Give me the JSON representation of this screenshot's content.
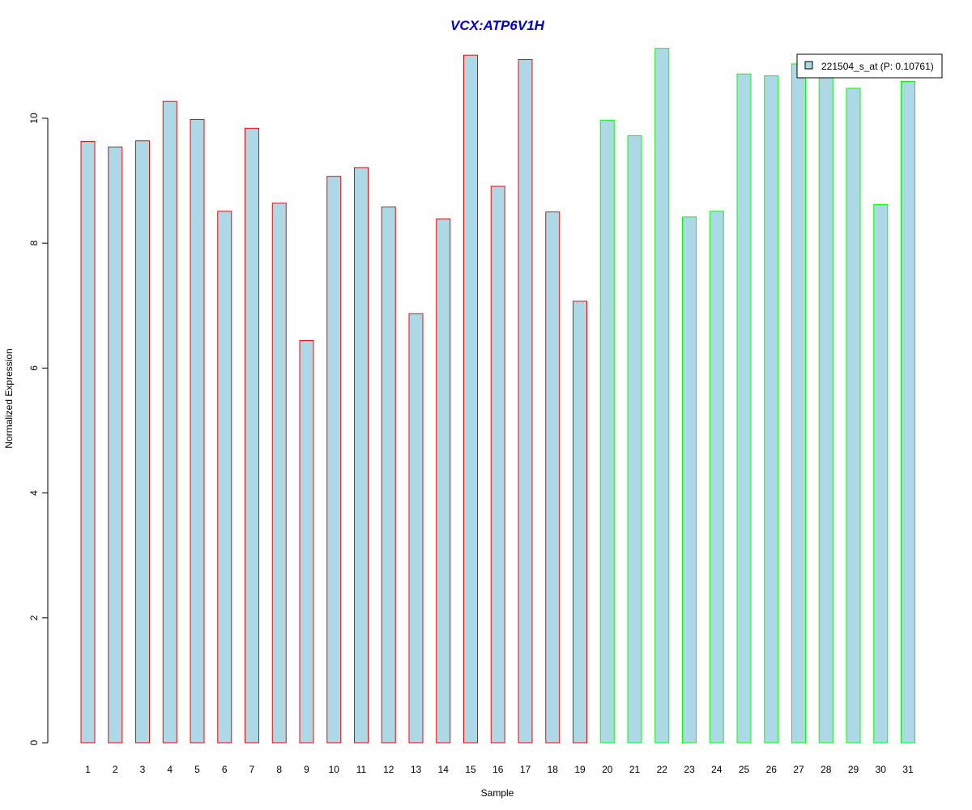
{
  "chart_data": {
    "type": "bar",
    "title": "VCX:ATP6V1H",
    "xlabel": "Sample",
    "ylabel": "Normalized Expression",
    "categories": [
      "1",
      "2",
      "3",
      "4",
      "5",
      "6",
      "7",
      "8",
      "9",
      "10",
      "11",
      "12",
      "13",
      "14",
      "15",
      "16",
      "17",
      "18",
      "19",
      "20",
      "21",
      "22",
      "23",
      "24",
      "25",
      "26",
      "27",
      "28",
      "29",
      "30",
      "31"
    ],
    "series": [
      {
        "name": "221504_s_at (P: 0.10761)",
        "values": [
          9.63,
          9.54,
          9.64,
          10.27,
          9.98,
          8.51,
          9.84,
          8.64,
          6.44,
          9.07,
          9.21,
          8.58,
          6.87,
          8.39,
          11.01,
          8.91,
          10.94,
          8.5,
          7.07,
          9.97,
          9.72,
          11.12,
          8.42,
          8.51,
          10.71,
          10.68,
          10.87,
          10.7,
          10.48,
          8.62,
          10.59
        ]
      }
    ],
    "yticks": [
      0,
      2,
      4,
      6,
      8,
      10
    ],
    "ylim": [
      0,
      11.12
    ],
    "legend_position": "top-right",
    "grid": false,
    "colors": {
      "bar_fill": "#add8e6",
      "group1_border": "#ff0000",
      "group2_border": "#00ff00",
      "title": "#0000cd",
      "legend_border": "#000000"
    },
    "groups": [
      {
        "samples": "1-19",
        "border_color": "#ff0000"
      },
      {
        "samples": "20-31",
        "border_color": "#00ff00"
      }
    ]
  }
}
